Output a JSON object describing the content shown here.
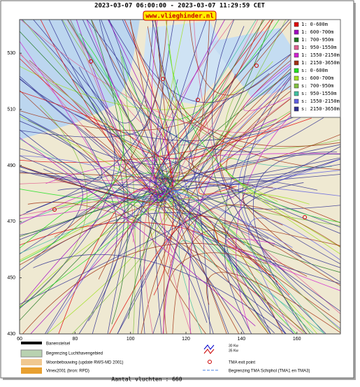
{
  "header": {
    "title": "2023-03-07 06:00:00 - 2023-03-07 11:29:59 CET",
    "url": "www.vlieghinder.nl"
  },
  "axes": {
    "xlim": [
      60,
      175.7
    ],
    "ylim": [
      430,
      542
    ],
    "xticks": [
      60,
      80,
      100,
      120,
      140,
      160
    ],
    "yticks": [
      430,
      450,
      470,
      490,
      510,
      530
    ]
  },
  "legend": {
    "items": [
      {
        "label": "1: 0-600m",
        "color": "#e00000"
      },
      {
        "label": "1: 600-700m",
        "color": "#a000c0"
      },
      {
        "label": "1: 700-950m",
        "color": "#207820"
      },
      {
        "label": "1: 950-1550m",
        "color": "#e06090"
      },
      {
        "label": "1: 1550-2150m",
        "color": "#d020d0"
      },
      {
        "label": "1: 2150-3650m",
        "color": "#a03010"
      },
      {
        "label": "s: 0-600m",
        "color": "#20e020"
      },
      {
        "label": "s: 600-700m",
        "color": "#a0e020"
      },
      {
        "label": "s: 700-950m",
        "color": "#80c040"
      },
      {
        "label": "s: 950-1550m",
        "color": "#40c0a0"
      },
      {
        "label": "s: 1550-2150m",
        "color": "#6060e0"
      },
      {
        "label": "s: 2150-3650m",
        "color": "#303090"
      }
    ]
  },
  "map_legend": {
    "left": [
      "Banenstelsel",
      "Begrenzing Luchthavengebied",
      "Woonbebouwing (update RWS-MD 2001)",
      "Vinex2001 (bron: RPD)"
    ],
    "wind": [
      "30 Kw",
      "35 Kw"
    ],
    "right": [
      "TMA exit point",
      "Begrenzing TMA Schiphol  (TMA1 en TMA3)"
    ]
  },
  "footer": {
    "count": "Aantal vluchten : 660"
  }
}
